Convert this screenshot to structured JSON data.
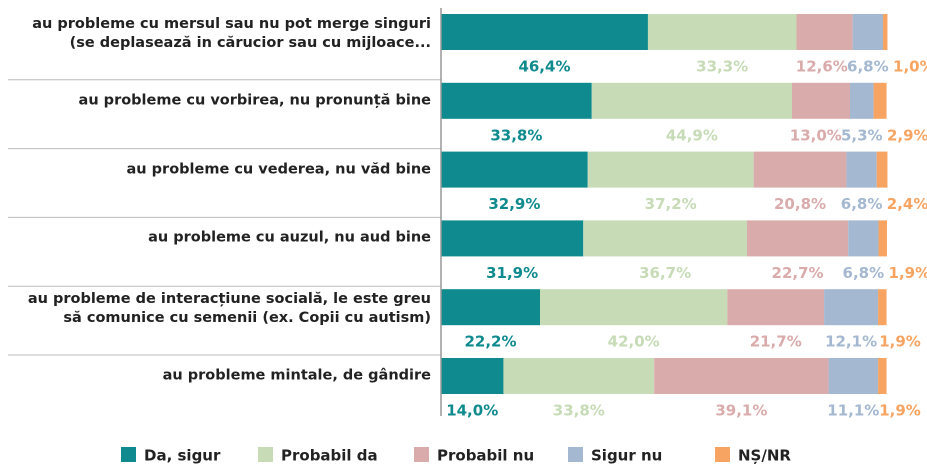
{
  "chart_data": {
    "type": "stacked_bar_horizontal",
    "categories": [
      "au probleme cu mersul sau nu pot merge singuri\n(se deplasează in cărucior sau cu mijloace...",
      "au probleme cu vorbirea, nu pronunță bine",
      "au probleme cu vederea, nu văd bine",
      "au probleme cu auzul, nu aud bine",
      "au probleme de interacțiune socială, le este greu\nsă comunice cu semenii (ex. Copii cu autism)",
      "au probleme mintale, de gândire"
    ],
    "series": [
      {
        "name": "Da, sigur",
        "color": "#0f8a8e",
        "values": [
          46.4,
          33.8,
          32.9,
          31.9,
          22.2,
          14.0
        ],
        "value_labels": [
          "46,4%",
          "33,8%",
          "32,9%",
          "31,9%",
          "22,2%",
          "14,0%"
        ]
      },
      {
        "name": "Probabil da",
        "color": "#c6dbb6",
        "values": [
          33.3,
          44.9,
          37.2,
          36.7,
          42.0,
          33.8
        ],
        "value_labels": [
          "33,3%",
          "44,9%",
          "37,2%",
          "36,7%",
          "42,0%",
          "33,8%"
        ]
      },
      {
        "name": "Probabil nu",
        "color": "#d9abab",
        "values": [
          12.6,
          13.0,
          20.8,
          22.7,
          21.7,
          39.1
        ],
        "value_labels": [
          "12,6%",
          "13,0%",
          "20,8%",
          "22,7%",
          "21,7%",
          "39,1%"
        ]
      },
      {
        "name": "Sigur nu",
        "color": "#a4b8d1",
        "values": [
          6.8,
          5.3,
          6.8,
          6.8,
          12.1,
          11.1
        ],
        "value_labels": [
          "6,8%",
          "5,3%",
          "6,8%",
          "6,8%",
          "12,1%",
          "11,1%"
        ]
      },
      {
        "name": "NȘ/NR",
        "color": "#f7a462",
        "values": [
          1.0,
          2.9,
          2.4,
          1.9,
          1.9,
          1.9
        ],
        "value_labels": [
          "1,0%",
          "2,9%",
          "2,4%",
          "1,9%",
          "1,9%",
          "1,9%"
        ]
      }
    ]
  }
}
